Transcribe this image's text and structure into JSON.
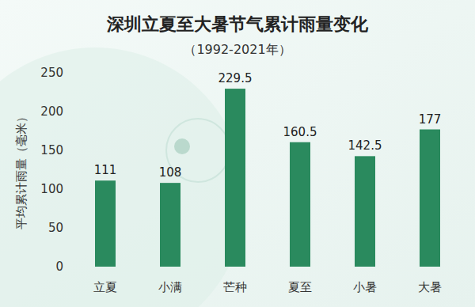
{
  "chart_data": {
    "type": "bar",
    "title": "深圳立夏至大暑节气累计雨量变化",
    "subtitle": "（1992-2021年）",
    "y_label": "平均累计雨量（毫米）",
    "categories": [
      "立夏",
      "小满",
      "芒种",
      "夏至",
      "小暑",
      "大暑"
    ],
    "values": [
      111,
      108,
      229.5,
      160.5,
      142.5,
      177
    ],
    "color": "#2a8a5e",
    "ylim": [
      0,
      250
    ],
    "yticks": [
      0,
      50,
      100,
      150,
      200,
      250
    ],
    "grid": false,
    "data_labels": true
  }
}
